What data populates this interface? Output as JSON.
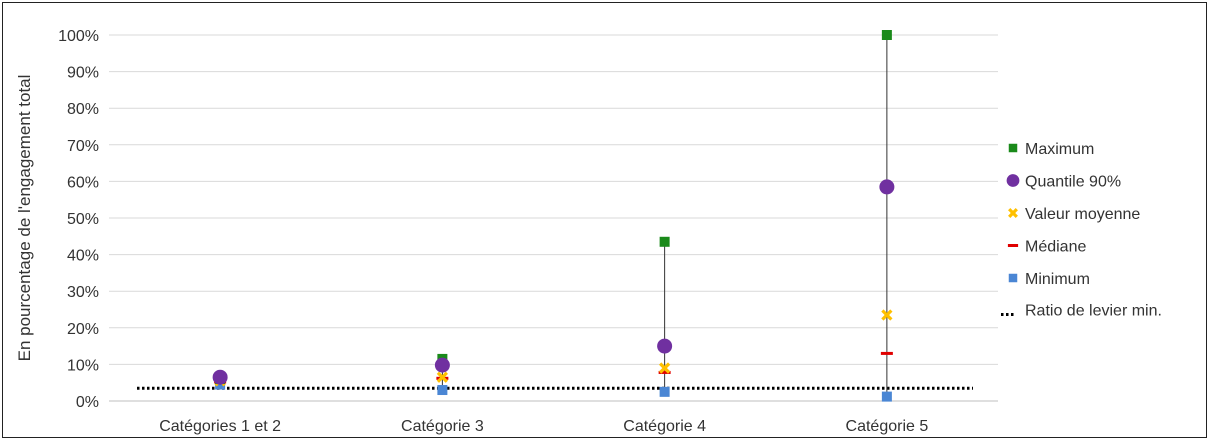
{
  "chart_data": {
    "type": "scatter",
    "ylabel": "En pourcentage de l'engagement total",
    "xlabel": "",
    "title": "",
    "categories": [
      "Catégories 1 et  2",
      "Catégorie 3",
      "Catégorie 4",
      "Catégorie 5"
    ],
    "ylim": [
      0,
      100
    ],
    "yticks": [
      "0%",
      "10%",
      "20%",
      "30%",
      "40%",
      "50%",
      "60%",
      "70%",
      "80%",
      "90%",
      "100%"
    ],
    "grid": true,
    "legend_position": "right",
    "series": [
      {
        "name": "Maximum",
        "marker": "square",
        "color": "#1a8a1a",
        "values": [
          6,
          11.5,
          43.5,
          100
        ]
      },
      {
        "name": "Quantile 90%",
        "marker": "circle",
        "color": "#7030a0",
        "values": [
          6.5,
          9.8,
          15,
          58.5
        ]
      },
      {
        "name": "Valeur moyenne",
        "marker": "x",
        "color": "#ffc000",
        "values": [
          5.5,
          6.5,
          9,
          23.5
        ]
      },
      {
        "name": "Médiane",
        "marker": "dash",
        "color": "#e00000",
        "values": [
          5.2,
          6.2,
          7.8,
          13
        ]
      },
      {
        "name": "Minimum",
        "marker": "square",
        "color": "#4a86d4",
        "values": [
          4.5,
          3,
          2.5,
          1.2
        ]
      }
    ],
    "reference_line": {
      "name": "Ratio de levier min.",
      "value": 3.5,
      "style": "dotted",
      "color": "#000000"
    }
  }
}
